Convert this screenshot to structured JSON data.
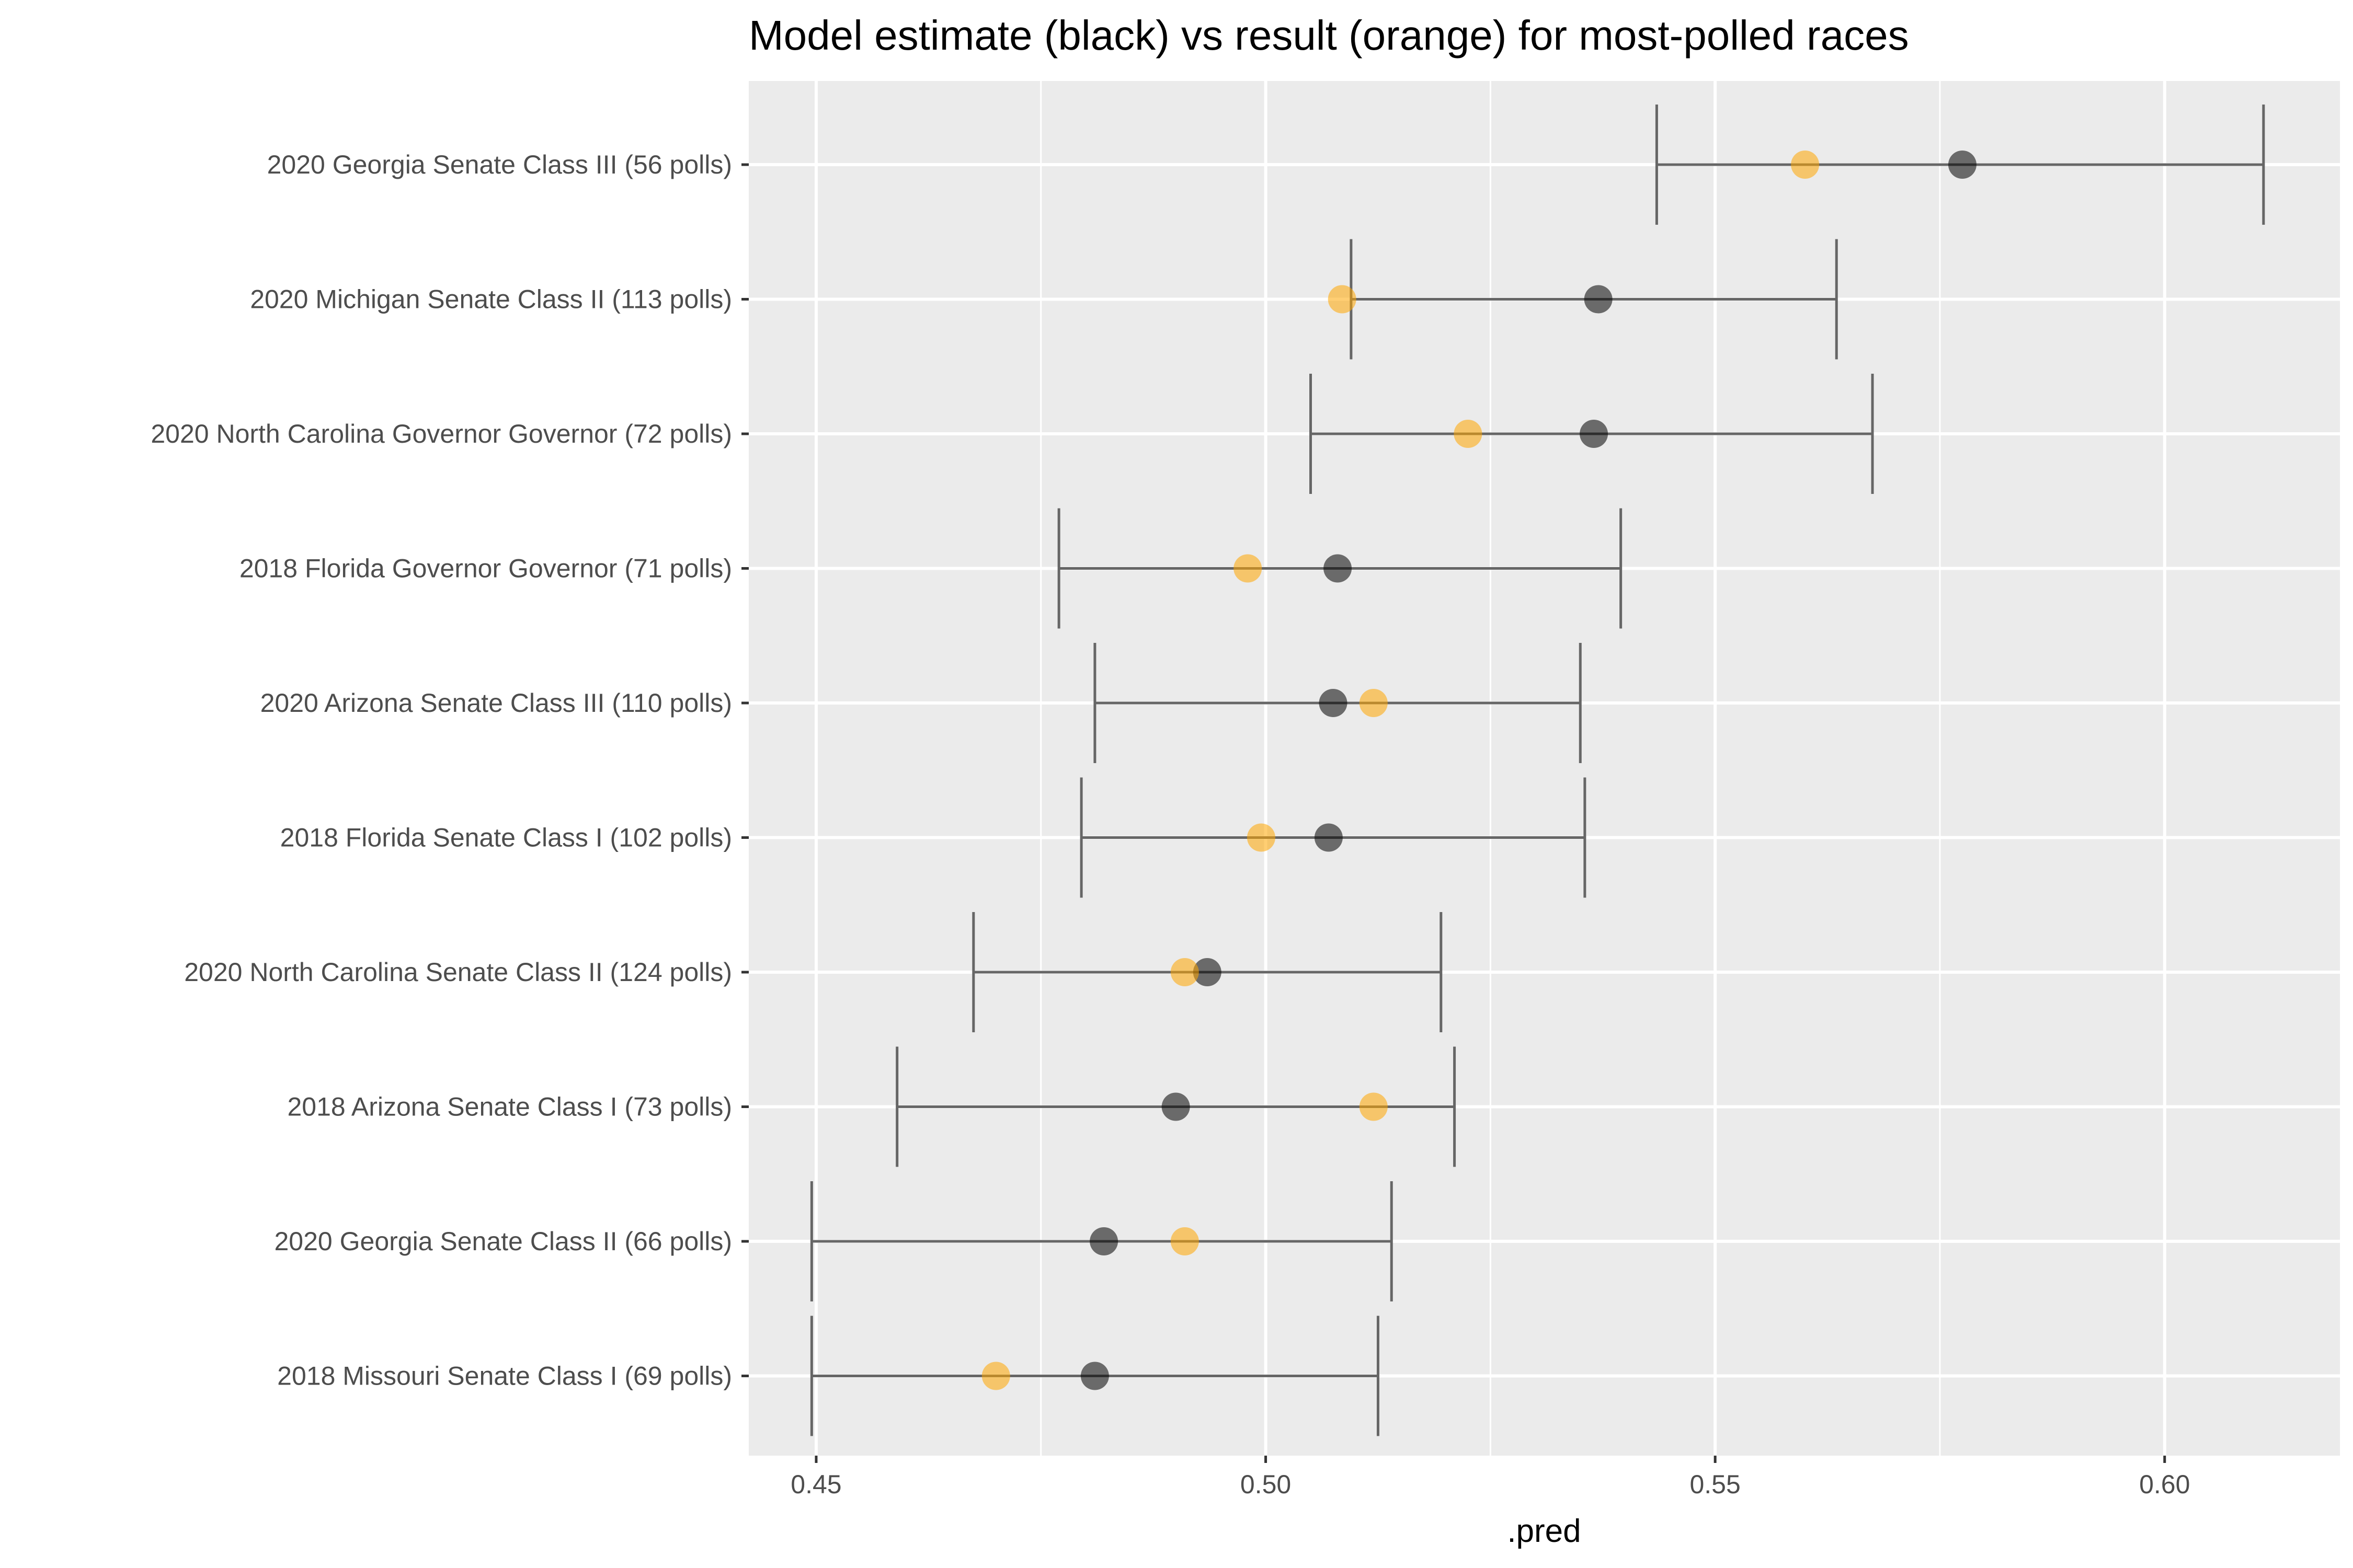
{
  "chart_data": {
    "type": "scatter",
    "title": "Model estimate (black) vs result (orange) for most-polled races",
    "xlabel": ".pred",
    "ylabel": "",
    "xlim": [
      0.4425,
      0.6195
    ],
    "x_ticks": [
      0.45,
      0.5,
      0.55,
      0.6
    ],
    "x_tick_labels": [
      "0.45",
      "0.50",
      "0.55",
      "0.60"
    ],
    "grid": true,
    "colors": {
      "panel_background": "#ebebeb",
      "grid_line": "#ffffff",
      "estimate_point": "#000000",
      "result_point": "#ffa500",
      "error_bar": "#666666"
    },
    "races": [
      {
        "label": "2020 Georgia Senate Class III (56 polls)",
        "estimate": 0.5775,
        "result": 0.56,
        "lower": 0.5435,
        "upper": 0.611
      },
      {
        "label": "2020 Michigan Senate Class II (113 polls)",
        "estimate": 0.537,
        "result": 0.5085,
        "lower": 0.5095,
        "upper": 0.5635
      },
      {
        "label": "2020 North Carolina Governor Governor (72 polls)",
        "estimate": 0.5365,
        "result": 0.5225,
        "lower": 0.505,
        "upper": 0.5675
      },
      {
        "label": "2018 Florida Governor Governor (71 polls)",
        "estimate": 0.508,
        "result": 0.498,
        "lower": 0.477,
        "upper": 0.5395
      },
      {
        "label": "2020 Arizona Senate Class III (110 polls)",
        "estimate": 0.5075,
        "result": 0.512,
        "lower": 0.481,
        "upper": 0.535
      },
      {
        "label": "2018 Florida Senate Class I (102 polls)",
        "estimate": 0.507,
        "result": 0.4995,
        "lower": 0.4795,
        "upper": 0.5355
      },
      {
        "label": "2020 North Carolina Senate Class II (124 polls)",
        "estimate": 0.4935,
        "result": 0.491,
        "lower": 0.4675,
        "upper": 0.5195
      },
      {
        "label": "2018 Arizona Senate Class I (73 polls)",
        "estimate": 0.49,
        "result": 0.512,
        "lower": 0.459,
        "upper": 0.521
      },
      {
        "label": "2020 Georgia Senate Class II (66 polls)",
        "estimate": 0.482,
        "result": 0.491,
        "lower": 0.4495,
        "upper": 0.514
      },
      {
        "label": "2018 Missouri Senate Class I (69 polls)",
        "estimate": 0.481,
        "result": 0.47,
        "lower": 0.4495,
        "upper": 0.5125
      }
    ]
  }
}
